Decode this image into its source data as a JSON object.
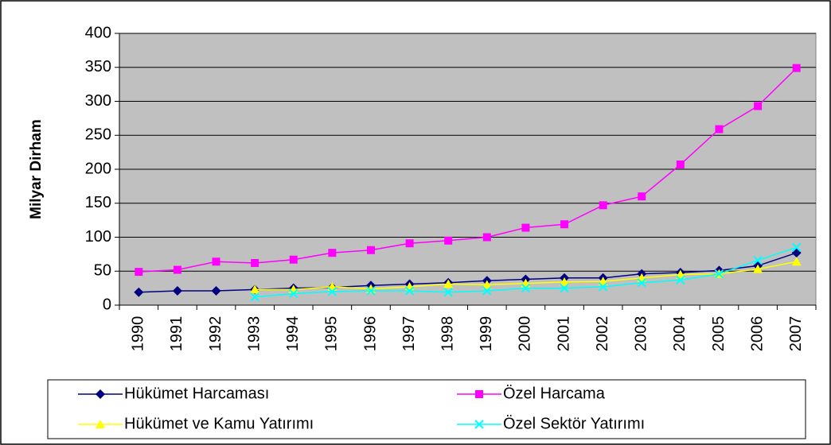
{
  "chart_data": {
    "type": "line",
    "y_label": "Milyar Dirham",
    "categories": [
      "1990",
      "1991",
      "1992",
      "1993",
      "1994",
      "1995",
      "1996",
      "1997",
      "1998",
      "1999",
      "2000",
      "2001",
      "2002",
      "2003",
      "2004",
      "2005",
      "2006",
      "2007"
    ],
    "series": [
      {
        "name": "Hükümet Harcaması",
        "color": "#000080",
        "values": [
          19,
          21,
          21,
          23,
          25,
          26,
          29,
          31,
          33,
          36,
          38,
          40,
          40,
          46,
          48,
          51,
          58,
          77
        ]
      },
      {
        "name": "Özel Harcama",
        "color": "#ff00ff",
        "values": [
          49,
          52,
          64,
          62,
          67,
          77,
          81,
          91,
          95,
          100,
          114,
          119,
          147,
          160,
          207,
          259,
          293,
          349
        ]
      },
      {
        "name": "Hükümet ve Kamu Yatırımı",
        "color": "#ffff00",
        "values": [
          null,
          null,
          null,
          23,
          23,
          27,
          24,
          27,
          31,
          30,
          32,
          34,
          35,
          40,
          45,
          46,
          53,
          64
        ]
      },
      {
        "name": "Özel Sektör Yatırımı",
        "color": "#00ffff",
        "values": [
          null,
          null,
          null,
          12,
          17,
          20,
          21,
          21,
          19,
          21,
          25,
          25,
          27,
          33,
          37,
          46,
          66,
          85
        ]
      }
    ],
    "ylim": [
      0,
      400
    ],
    "yticks": [
      0,
      50,
      100,
      150,
      200,
      250,
      300,
      350,
      400
    ],
    "grid": true,
    "plot_background": "#c0c0c0"
  }
}
